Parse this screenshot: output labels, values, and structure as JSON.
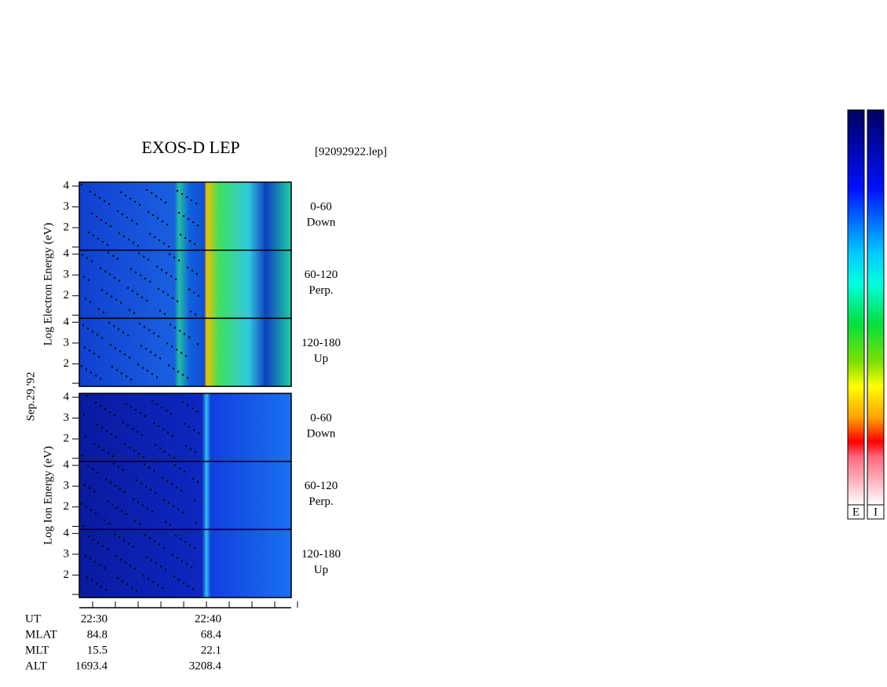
{
  "title": "EXOS-D LEP",
  "file": "[92092922.lep]",
  "date": "Sep.29,'92",
  "yticks": [
    2,
    3,
    4
  ],
  "groups": [
    {
      "axis_label": "Log  Electron  Energy (eV)",
      "species": "electron",
      "panels": [
        {
          "angle": "0-60",
          "direction": "Down"
        },
        {
          "angle": "60-120",
          "direction": "Perp."
        },
        {
          "angle": "120-180",
          "direction": "Up"
        }
      ]
    },
    {
      "axis_label": "Log  Ion  Energy (eV)",
      "species": "ion",
      "panels": [
        {
          "angle": "0-60",
          "direction": "Down"
        },
        {
          "angle": "60-120",
          "direction": "Perp."
        },
        {
          "angle": "120-180",
          "direction": "Up"
        }
      ]
    }
  ],
  "time_axis": [
    {
      "label": "UT",
      "values": [
        "22:30",
        "22:40"
      ]
    },
    {
      "label": "MLAT",
      "values": [
        "84.8",
        "68.4"
      ]
    },
    {
      "label": "MLT",
      "values": [
        "15.5",
        "22.1"
      ]
    },
    {
      "label": "ALT",
      "values": [
        "1693.4",
        "3208.4"
      ]
    }
  ],
  "colorbars": [
    "E",
    "I"
  ]
}
